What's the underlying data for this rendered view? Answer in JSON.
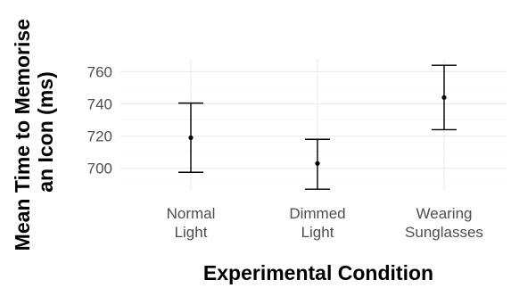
{
  "chart_data": {
    "type": "errorbar",
    "xlabel": "Experimental Condition",
    "ylabel_lines": [
      "Mean Time to Memorise",
      "an Icon (ms)"
    ],
    "categories": [
      {
        "lines": [
          "Normal",
          "Light"
        ],
        "mean": 719,
        "lower": 697.5,
        "upper": 740.5
      },
      {
        "lines": [
          "Dimmed",
          "Light"
        ],
        "mean": 703,
        "lower": 687,
        "upper": 718
      },
      {
        "lines": [
          "Wearing",
          "Sunglasses"
        ],
        "mean": 744,
        "lower": 724,
        "upper": 764
      }
    ],
    "y_ticks": [
      700,
      720,
      740,
      760
    ],
    "ylim": [
      686,
      768
    ],
    "grid": true,
    "colors": {
      "bar": "#000000",
      "grid": "#ebebeb",
      "text": "#4d4d4d"
    }
  }
}
